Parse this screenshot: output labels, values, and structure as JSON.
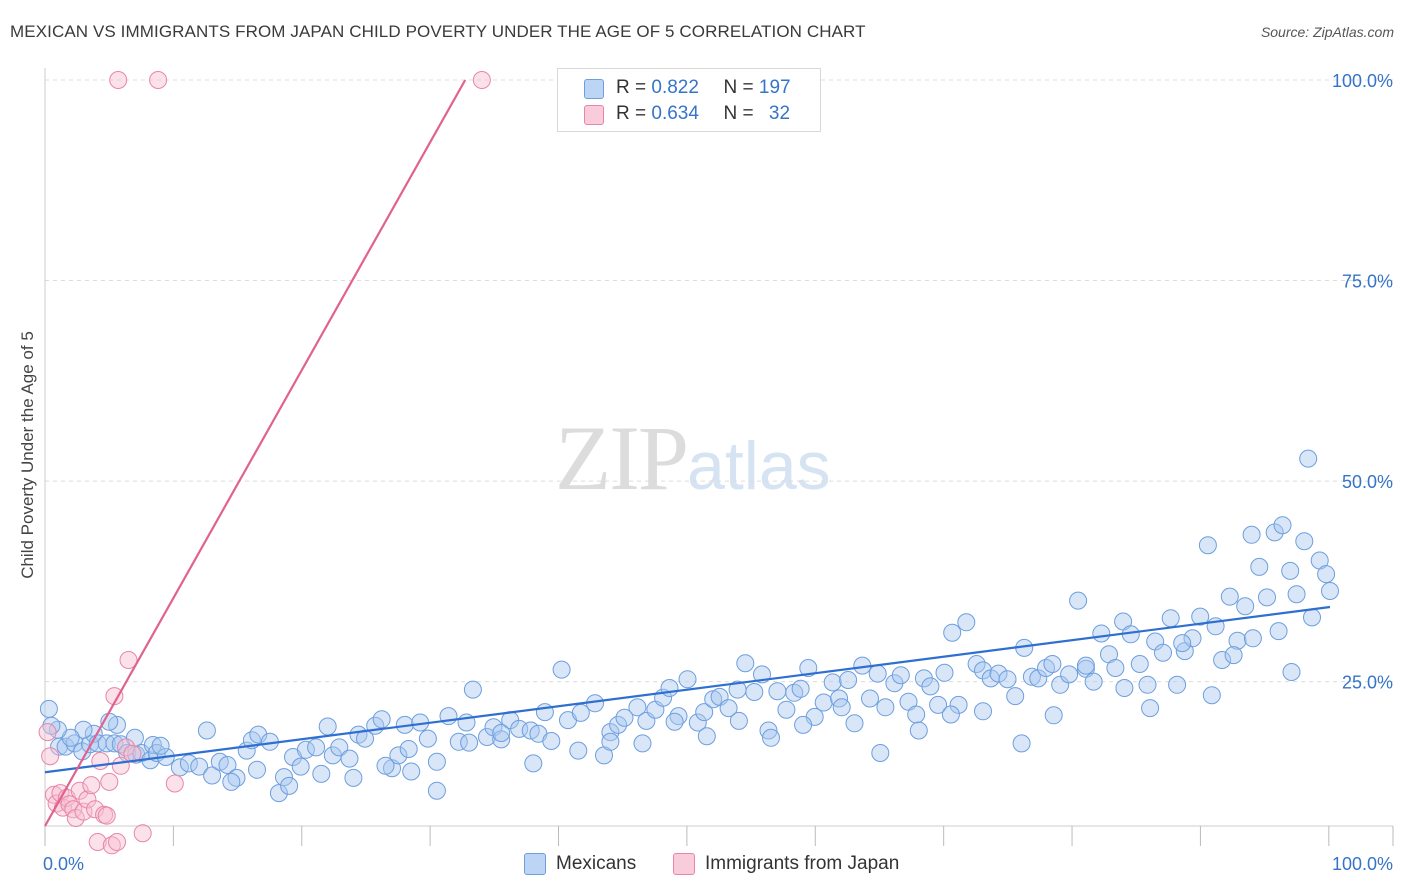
{
  "title": "MEXICAN VS IMMIGRANTS FROM JAPAN CHILD POVERTY UNDER THE AGE OF 5 CORRELATION CHART",
  "source": "Source: ZipAtlas.com",
  "watermark": {
    "zip": "ZIP",
    "atlas": "atlas"
  },
  "colors": {
    "blue": "#3574c8",
    "blue_fill": "#a9c8f0",
    "pink": "#e0628f",
    "pink_fill": "#f7bfd1",
    "tick_label": "#3574c8"
  },
  "stats": [
    {
      "r_label": "R =",
      "r": "0.822",
      "n_label": "N =",
      "n": "197"
    },
    {
      "r_label": "R =",
      "r": "0.634",
      "n_label": "N =",
      "n": "32"
    }
  ],
  "legend": {
    "series1": "Mexicans",
    "series2": "Immigrants from Japan"
  },
  "chart_data": {
    "type": "scatter",
    "title": "MEXICAN VS IMMIGRANTS FROM JAPAN CHILD POVERTY UNDER THE AGE OF 5 CORRELATION CHART",
    "xlabel": "",
    "ylabel": "Child Poverty Under the Age of 5",
    "xlim": [
      0,
      100
    ],
    "ylim": [
      0,
      100
    ],
    "x_tick_labels": [
      "0.0%",
      "100.0%"
    ],
    "y_tick_labels": [
      "25.0%",
      "50.0%",
      "75.0%",
      "100.0%"
    ],
    "y_ticks": [
      25,
      50,
      75,
      100
    ],
    "grid": true,
    "legend_position": "bottom",
    "series": [
      {
        "name": "Mexicans",
        "r": 0.822,
        "n": 197,
        "trend": [
          [
            0,
            13.7
          ],
          [
            100,
            34.3
          ]
        ],
        "points": [
          [
            0.3,
            21.6
          ],
          [
            1.1,
            16.9
          ],
          [
            1.6,
            16.9
          ],
          [
            2.3,
            17.3
          ],
          [
            2.9,
            16.3
          ],
          [
            3.5,
            17.2
          ],
          [
            3.8,
            18.5
          ],
          [
            4.1,
            17.3
          ],
          [
            4.8,
            17.3
          ],
          [
            5.4,
            17.3
          ],
          [
            5.6,
            19.6
          ],
          [
            5.9,
            17.2
          ],
          [
            6.4,
            16.1
          ],
          [
            7.1,
            15.9
          ],
          [
            7.5,
            16.1
          ],
          [
            8.2,
            15.2
          ],
          [
            8.4,
            17.1
          ],
          [
            8.7,
            16.1
          ],
          [
            9.4,
            15.6
          ],
          [
            10.5,
            14.3
          ],
          [
            11.2,
            14.8
          ],
          [
            12.0,
            14.4
          ],
          [
            12.6,
            18.9
          ],
          [
            13.0,
            13.3
          ],
          [
            13.6,
            15.0
          ],
          [
            14.2,
            14.6
          ],
          [
            14.9,
            13.0
          ],
          [
            15.7,
            16.4
          ],
          [
            16.1,
            17.7
          ],
          [
            16.6,
            18.4
          ],
          [
            17.5,
            17.5
          ],
          [
            18.2,
            11.1
          ],
          [
            18.6,
            13.1
          ],
          [
            19.3,
            15.6
          ],
          [
            19.9,
            14.4
          ],
          [
            20.3,
            16.5
          ],
          [
            21.1,
            16.8
          ],
          [
            22.0,
            19.4
          ],
          [
            22.4,
            15.8
          ],
          [
            22.9,
            16.8
          ],
          [
            23.7,
            15.4
          ],
          [
            24.4,
            18.4
          ],
          [
            24.9,
            17.9
          ],
          [
            25.7,
            19.5
          ],
          [
            26.2,
            20.3
          ],
          [
            27.0,
            14.2
          ],
          [
            27.5,
            15.8
          ],
          [
            28.0,
            19.6
          ],
          [
            28.3,
            16.6
          ],
          [
            29.2,
            19.9
          ],
          [
            29.8,
            17.9
          ],
          [
            30.5,
            11.4
          ],
          [
            31.4,
            20.7
          ],
          [
            32.2,
            17.5
          ],
          [
            32.8,
            19.9
          ],
          [
            33.3,
            24.0
          ],
          [
            34.4,
            18.1
          ],
          [
            34.9,
            19.3
          ],
          [
            35.5,
            17.8
          ],
          [
            36.2,
            20.2
          ],
          [
            36.9,
            19.1
          ],
          [
            37.8,
            18.9
          ],
          [
            38.4,
            18.5
          ],
          [
            38.9,
            21.2
          ],
          [
            39.4,
            17.6
          ],
          [
            40.2,
            26.5
          ],
          [
            40.7,
            20.2
          ],
          [
            41.7,
            21.1
          ],
          [
            42.8,
            22.3
          ],
          [
            43.5,
            15.8
          ],
          [
            44.0,
            18.7
          ],
          [
            44.6,
            19.6
          ],
          [
            45.1,
            20.5
          ],
          [
            46.1,
            21.8
          ],
          [
            46.8,
            20.1
          ],
          [
            47.5,
            21.5
          ],
          [
            48.1,
            23.0
          ],
          [
            48.6,
            24.2
          ],
          [
            49.3,
            20.7
          ],
          [
            50.0,
            25.3
          ],
          [
            50.8,
            19.9
          ],
          [
            51.3,
            21.2
          ],
          [
            52.0,
            22.8
          ],
          [
            52.5,
            23.1
          ],
          [
            53.2,
            21.7
          ],
          [
            53.9,
            24.0
          ],
          [
            54.5,
            27.3
          ],
          [
            55.2,
            23.7
          ],
          [
            55.8,
            25.9
          ],
          [
            56.3,
            18.9
          ],
          [
            57.0,
            23.8
          ],
          [
            57.7,
            21.5
          ],
          [
            58.3,
            23.6
          ],
          [
            58.8,
            24.1
          ],
          [
            59.4,
            26.7
          ],
          [
            59.9,
            20.6
          ],
          [
            60.6,
            22.4
          ],
          [
            61.3,
            24.9
          ],
          [
            61.8,
            22.9
          ],
          [
            62.5,
            25.2
          ],
          [
            63.0,
            19.8
          ],
          [
            63.6,
            27.0
          ],
          [
            64.2,
            22.9
          ],
          [
            64.8,
            26.0
          ],
          [
            65.4,
            21.8
          ],
          [
            66.1,
            24.8
          ],
          [
            66.6,
            25.8
          ],
          [
            67.2,
            22.5
          ],
          [
            67.8,
            20.9
          ],
          [
            68.4,
            25.4
          ],
          [
            68.9,
            24.4
          ],
          [
            69.5,
            22.1
          ],
          [
            70.0,
            26.1
          ],
          [
            70.6,
            31.1
          ],
          [
            71.1,
            22.1
          ],
          [
            71.7,
            32.4
          ],
          [
            72.5,
            27.2
          ],
          [
            73.0,
            26.4
          ],
          [
            73.6,
            25.4
          ],
          [
            74.2,
            26.0
          ],
          [
            74.9,
            25.3
          ],
          [
            75.5,
            23.2
          ],
          [
            76.2,
            29.2
          ],
          [
            76.8,
            25.6
          ],
          [
            77.3,
            25.4
          ],
          [
            77.9,
            26.7
          ],
          [
            78.4,
            27.2
          ],
          [
            79.0,
            24.6
          ],
          [
            79.7,
            25.9
          ],
          [
            80.4,
            35.1
          ],
          [
            81.0,
            26.6
          ],
          [
            81.6,
            25.0
          ],
          [
            82.2,
            31.0
          ],
          [
            82.8,
            28.4
          ],
          [
            83.3,
            26.7
          ],
          [
            83.9,
            32.5
          ],
          [
            84.5,
            30.9
          ],
          [
            85.2,
            27.2
          ],
          [
            85.8,
            24.6
          ],
          [
            86.4,
            30.0
          ],
          [
            87.0,
            28.6
          ],
          [
            87.6,
            32.9
          ],
          [
            88.1,
            24.6
          ],
          [
            88.7,
            28.8
          ],
          [
            89.3,
            30.4
          ],
          [
            89.9,
            33.1
          ],
          [
            90.5,
            42.0
          ],
          [
            91.1,
            31.9
          ],
          [
            91.6,
            27.7
          ],
          [
            92.2,
            35.6
          ],
          [
            92.8,
            30.1
          ],
          [
            93.4,
            34.4
          ],
          [
            93.9,
            43.3
          ],
          [
            94.5,
            39.3
          ],
          [
            95.1,
            35.5
          ],
          [
            95.7,
            43.6
          ],
          [
            96.3,
            44.5
          ],
          [
            96.9,
            38.8
          ],
          [
            97.4,
            35.9
          ],
          [
            98.0,
            42.5
          ],
          [
            98.6,
            33.0
          ],
          [
            99.2,
            40.1
          ],
          [
            99.7,
            38.4
          ],
          [
            100.0,
            36.3
          ],
          [
            98.3,
            52.8
          ],
          [
            97.0,
            26.2
          ],
          [
            96.0,
            31.3
          ],
          [
            94.0,
            30.4
          ],
          [
            92.5,
            28.3
          ],
          [
            90.8,
            23.3
          ],
          [
            88.5,
            29.8
          ],
          [
            86.0,
            21.7
          ],
          [
            84.0,
            24.2
          ],
          [
            81.0,
            27.0
          ],
          [
            78.5,
            20.8
          ],
          [
            76.0,
            17.3
          ],
          [
            73.0,
            21.3
          ],
          [
            70.5,
            20.9
          ],
          [
            68.0,
            18.9
          ],
          [
            65.0,
            16.1
          ],
          [
            62.0,
            21.8
          ],
          [
            59.0,
            19.6
          ],
          [
            56.5,
            18.0
          ],
          [
            54.0,
            20.1
          ],
          [
            51.5,
            18.2
          ],
          [
            49.0,
            20.0
          ],
          [
            46.5,
            17.3
          ],
          [
            44.0,
            17.5
          ],
          [
            41.5,
            16.4
          ],
          [
            38.0,
            14.8
          ],
          [
            35.5,
            18.6
          ],
          [
            33.0,
            17.4
          ],
          [
            30.5,
            15.0
          ],
          [
            28.5,
            13.8
          ],
          [
            26.5,
            14.5
          ],
          [
            24.0,
            13.0
          ],
          [
            21.5,
            13.5
          ],
          [
            19.0,
            12.0
          ],
          [
            16.5,
            14.0
          ],
          [
            14.5,
            12.5
          ],
          [
            9.0,
            17.0
          ],
          [
            7.0,
            18.0
          ],
          [
            5.0,
            20.0
          ],
          [
            3.0,
            19.0
          ],
          [
            2.0,
            18.0
          ],
          [
            1.0,
            19.0
          ],
          [
            0.5,
            19.5
          ]
        ]
      },
      {
        "name": "Immigrants from Japan",
        "r": 0.634,
        "n": 32,
        "trend": [
          [
            0,
            7.0
          ],
          [
            32.7,
            100.0
          ]
        ],
        "points": [
          [
            0.2,
            18.7
          ],
          [
            0.4,
            15.7
          ],
          [
            0.7,
            10.9
          ],
          [
            0.9,
            9.8
          ],
          [
            1.2,
            11.1
          ],
          [
            1.4,
            9.3
          ],
          [
            1.7,
            10.5
          ],
          [
            1.9,
            9.7
          ],
          [
            2.2,
            9.1
          ],
          [
            2.4,
            8.0
          ],
          [
            2.7,
            11.4
          ],
          [
            3.0,
            8.8
          ],
          [
            3.3,
            10.3
          ],
          [
            3.6,
            12.1
          ],
          [
            3.9,
            9.1
          ],
          [
            4.1,
            5.0
          ],
          [
            4.3,
            15.1
          ],
          [
            4.6,
            8.4
          ],
          [
            4.8,
            8.3
          ],
          [
            5.0,
            12.5
          ],
          [
            5.2,
            4.6
          ],
          [
            5.4,
            23.2
          ],
          [
            5.6,
            5.0
          ],
          [
            5.9,
            14.5
          ],
          [
            6.3,
            16.8
          ],
          [
            6.5,
            27.7
          ],
          [
            6.8,
            16.0
          ],
          [
            7.6,
            6.1
          ],
          [
            10.1,
            12.3
          ],
          [
            5.7,
            100.0
          ],
          [
            8.8,
            100.0
          ],
          [
            34.0,
            100.0
          ]
        ]
      }
    ]
  }
}
